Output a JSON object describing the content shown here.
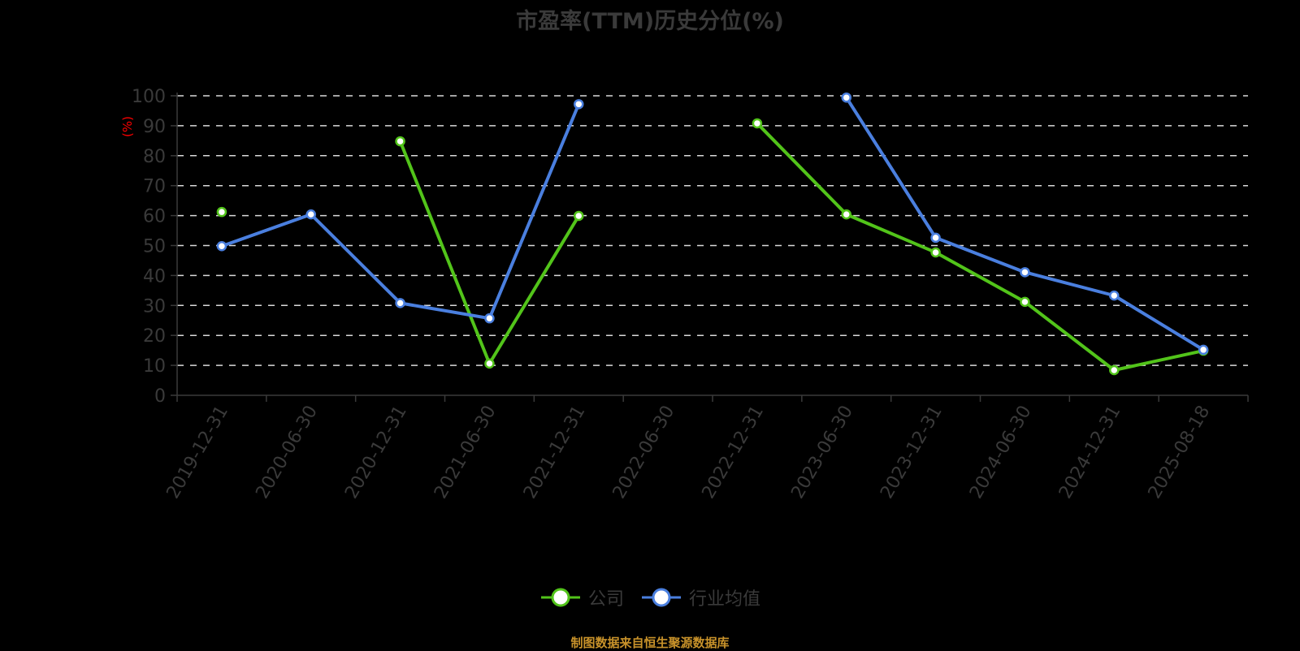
{
  "title": "市盈率(TTM)历史分位(%)",
  "footer": "制图数据来自恒生聚源数据库",
  "y_axis_unit": "(%)",
  "legend": [
    {
      "label": "公司",
      "color": "#52c41a"
    },
    {
      "label": "行业均值",
      "color": "#4a7fdf"
    }
  ],
  "chart_data": {
    "type": "line",
    "title": "市盈率(TTM)历史分位(%)",
    "xlabel": "",
    "ylabel": "(%)",
    "ylim": [
      0,
      100
    ],
    "yticks": [
      0,
      10,
      20,
      30,
      40,
      50,
      60,
      70,
      80,
      90,
      100
    ],
    "grid": "horizontal dashed",
    "legend_position": "bottom",
    "categories": [
      "2019-12-31",
      "2020-06-30",
      "2020-12-31",
      "2021-06-30",
      "2021-12-31",
      "2022-06-30",
      "2022-12-31",
      "2023-06-30",
      "2023-12-31",
      "2024-06-30",
      "2024-12-31",
      "2025-08-18"
    ],
    "series": [
      {
        "name": "公司",
        "color": "#52c41a",
        "values": [
          61.2,
          null,
          84.8,
          10.6,
          59.9,
          null,
          90.8,
          60.4,
          47.7,
          31.2,
          8.4,
          14.9
        ]
      },
      {
        "name": "行业均值",
        "color": "#4a7fdf",
        "values": [
          49.8,
          60.4,
          30.8,
          25.7,
          97.2,
          null,
          null,
          99.4,
          52.6,
          41.1,
          33.3,
          15.2
        ]
      }
    ]
  }
}
